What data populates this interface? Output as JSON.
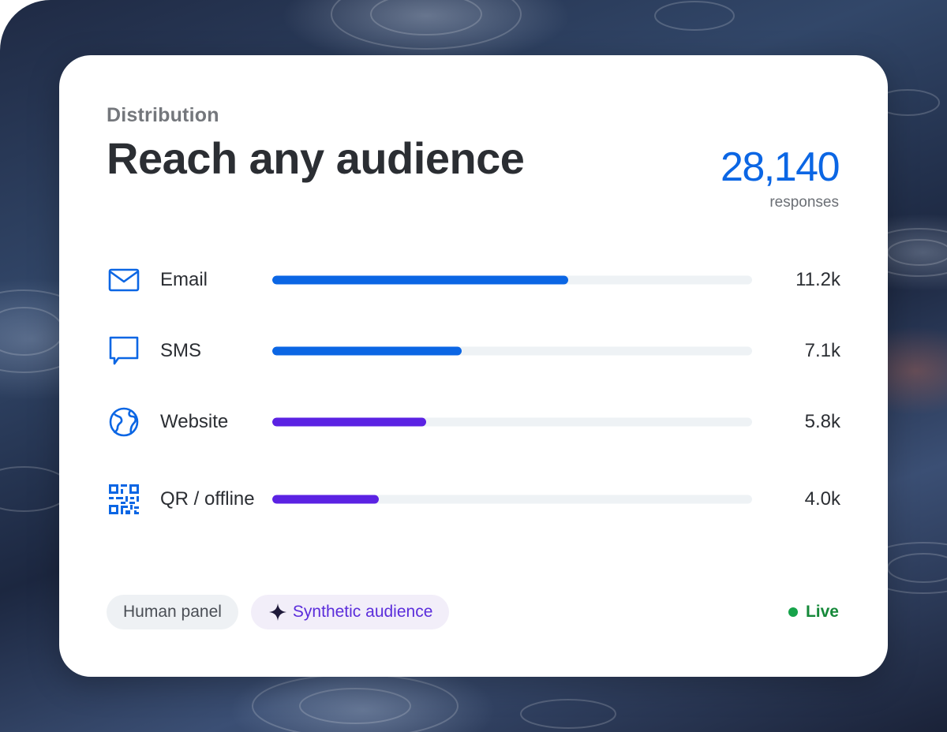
{
  "section": {
    "eyebrow": "Distribution",
    "title": "Reach any audience"
  },
  "metric": {
    "value": "28,140",
    "label": "responses"
  },
  "channels": [
    {
      "icon": "mail-icon",
      "label": "Email",
      "value": "11.2k",
      "share": 0.617,
      "color": "#0b66e4"
    },
    {
      "icon": "chat-icon",
      "label": "SMS",
      "value": "7.1k",
      "share": 0.395,
      "color": "#0b66e4"
    },
    {
      "icon": "globe-icon",
      "label": "Website",
      "value": "5.8k",
      "share": 0.321,
      "color": "#5b22e3"
    },
    {
      "icon": "qr-code-icon",
      "label": "QR / offline",
      "value": "4.0k",
      "share": 0.222,
      "color": "#5b22e3"
    }
  ],
  "chips": {
    "human": "Human panel",
    "synthetic": "Synthetic audience"
  },
  "status": {
    "label": "Live",
    "color": "#16a34a"
  },
  "colors": {
    "accent_blue": "#0b66e4",
    "accent_purple": "#5b22e3",
    "track": "#eef2f5"
  }
}
